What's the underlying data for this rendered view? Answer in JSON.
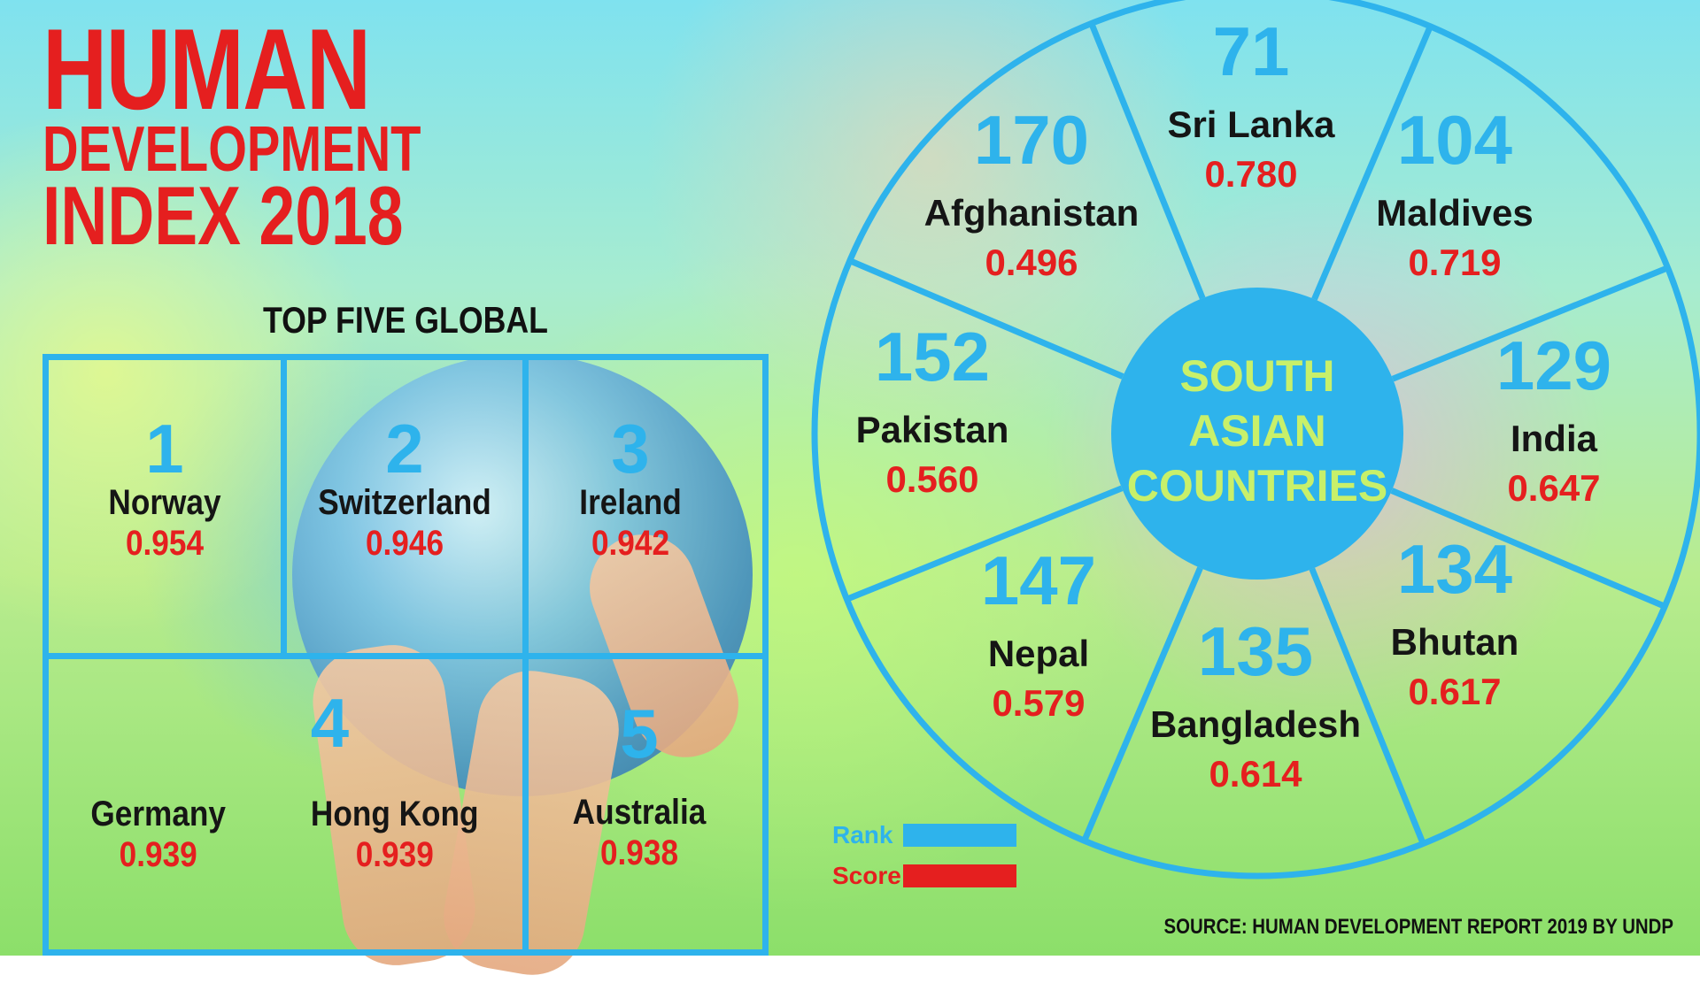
{
  "title": {
    "line1": "HUMAN",
    "line2": "DEVELOPMENT",
    "line3": "INDEX 2018"
  },
  "top_five": {
    "heading": "TOP FIVE GLOBAL",
    "entries": [
      {
        "rank": "1",
        "country": "Norway",
        "score": "0.954"
      },
      {
        "rank": "2",
        "country": "Switzerland",
        "score": "0.946"
      },
      {
        "rank": "3",
        "country": "Ireland",
        "score": "0.942"
      },
      {
        "rank": "4",
        "country": "Germany",
        "score": "0.939",
        "country2": "Hong Kong",
        "score2": "0.939"
      },
      {
        "rank": "5",
        "country": "Australia",
        "score": "0.938"
      }
    ]
  },
  "south_asia": {
    "center_label": [
      "SOUTH",
      "ASIAN",
      "COUNTRIES"
    ],
    "countries": [
      {
        "rank": "71",
        "country": "Sri Lanka",
        "score": "0.780"
      },
      {
        "rank": "104",
        "country": "Maldives",
        "score": "0.719"
      },
      {
        "rank": "129",
        "country": "India",
        "score": "0.647"
      },
      {
        "rank": "134",
        "country": "Bhutan",
        "score": "0.617"
      },
      {
        "rank": "135",
        "country": "Bangladesh",
        "score": "0.614"
      },
      {
        "rank": "147",
        "country": "Nepal",
        "score": "0.579"
      },
      {
        "rank": "152",
        "country": "Pakistan",
        "score": "0.560"
      },
      {
        "rank": "170",
        "country": "Afghanistan",
        "score": "0.496"
      }
    ]
  },
  "legend": [
    {
      "label": "Rank",
      "color": "#2eb3ec"
    },
    {
      "label": "Score",
      "color": "#e51f1f"
    }
  ],
  "source": "SOURCE: HUMAN DEVELOPMENT REPORT 2019 BY UNDP",
  "colors": {
    "accent_blue": "#2eb3ec",
    "accent_red": "#e51f1f",
    "text_dark": "#151515",
    "center_text": "#c8f06a"
  }
}
